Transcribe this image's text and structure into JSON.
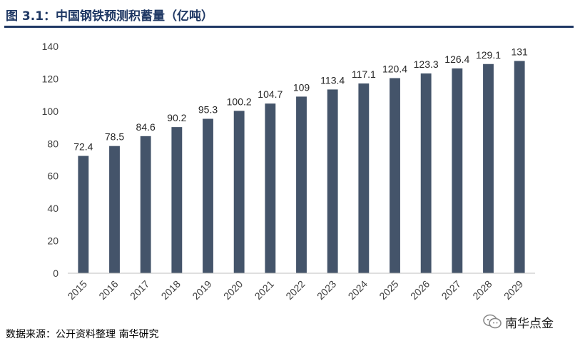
{
  "header": {
    "title": "图 3.1：中国钢铁预测积蓄量（亿吨）"
  },
  "footer": {
    "source": "数据来源：公开资料整理  南华研究",
    "brand": "南华点金"
  },
  "colors": {
    "bar": "#44546a",
    "title": "#1f3864",
    "axis": "#bfbfbf"
  },
  "icons": {
    "brand": "wechat-icon"
  },
  "chart_data": {
    "type": "bar",
    "title": "图 3.1：中国钢铁预测积蓄量（亿吨）",
    "xlabel": "",
    "ylabel": "",
    "categories": [
      "2015",
      "2016",
      "2017",
      "2018",
      "2019",
      "2020",
      "2021",
      "2022",
      "2023",
      "2024",
      "2025",
      "2026",
      "2027",
      "2028",
      "2029"
    ],
    "values": [
      72.4,
      78.5,
      84.6,
      90.2,
      95.3,
      100.2,
      104.7,
      109,
      113.4,
      117.1,
      120.4,
      123.3,
      126.4,
      129.1,
      131
    ],
    "ylim": [
      0,
      140
    ],
    "yticks": [
      0,
      20,
      40,
      60,
      80,
      100,
      120,
      140
    ],
    "grid": false,
    "legend": "none"
  }
}
